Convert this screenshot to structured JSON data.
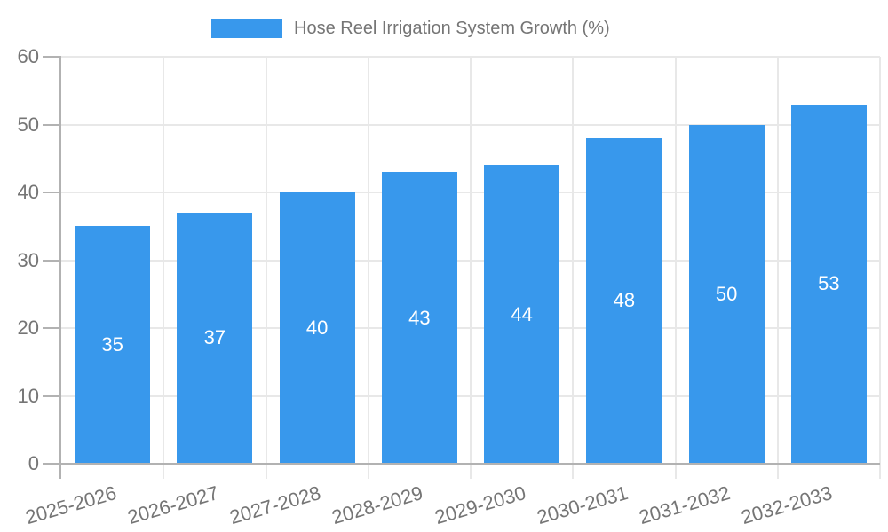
{
  "chart_data": {
    "type": "bar",
    "title": "Hose Reel Irrigation System Growth (%)",
    "legend_position": "top",
    "categories": [
      "2025-2026",
      "2026-2027",
      "2027-2028",
      "2028-2029",
      "2029-2030",
      "2030-2031",
      "2031-2032",
      "2032-2033"
    ],
    "series": [
      {
        "name": "Hose Reel Irrigation System Growth (%)",
        "values": [
          35,
          37,
          40,
          43,
          44,
          48,
          50,
          53
        ]
      }
    ],
    "xlabel": "",
    "ylabel": "",
    "ylim": [
      0,
      60
    ],
    "yticks": [
      0,
      10,
      20,
      30,
      40,
      50,
      60
    ],
    "grid": true,
    "x_label_rotation_deg": -16,
    "colors": {
      "bar": "#3898ec",
      "value_label": "#ffffff",
      "axis_text": "#757575",
      "grid_line": "#e8e8e8",
      "axis_line": "#b2b2b2",
      "background": "#ffffff"
    }
  }
}
